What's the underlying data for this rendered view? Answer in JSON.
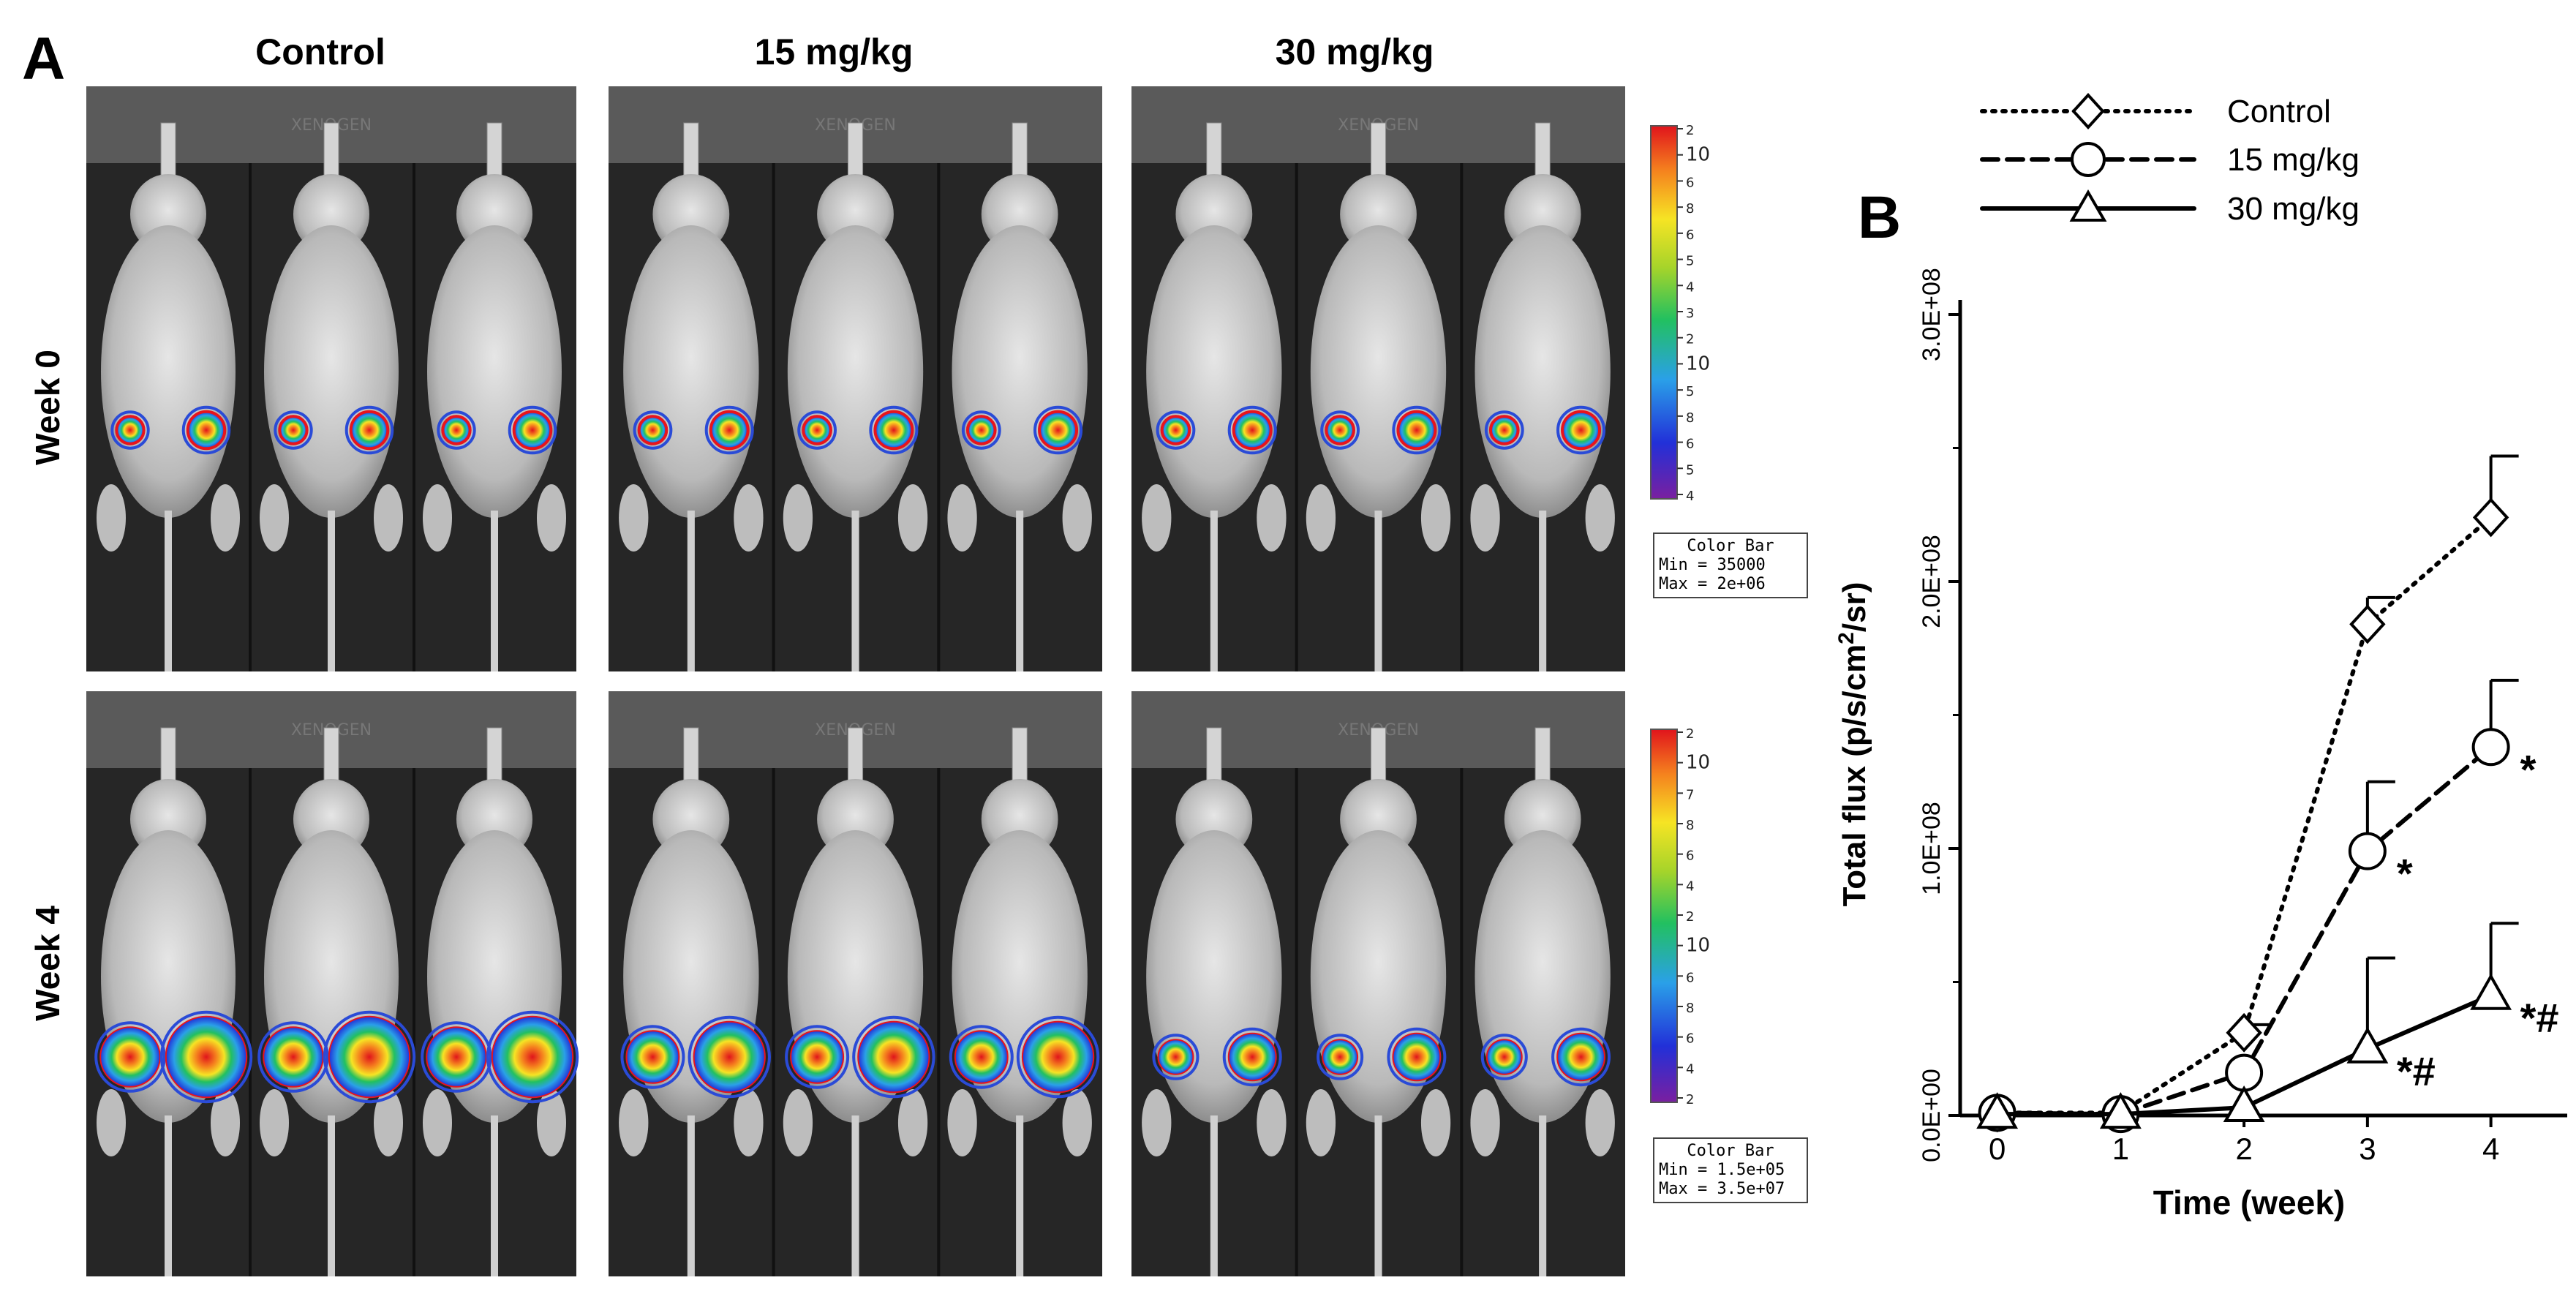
{
  "panel_a": {
    "letter": "A",
    "columns": [
      "Control",
      "15 mg/kg",
      "30 mg/kg"
    ],
    "rows": [
      "Week 0",
      "Week 4"
    ],
    "colorbars": [
      {
        "title": "Color Bar",
        "min": "Min = 35000",
        "max": "Max = 2e+06",
        "tick_labels": [
          "2",
          "10",
          "6",
          "8",
          "6",
          "5",
          "4",
          "3",
          "2",
          "10",
          "5",
          "8",
          "6",
          "5",
          "4"
        ]
      },
      {
        "title": "Color Bar",
        "min": "Min = 1.5e+05",
        "max": "Max = 3.5e+07",
        "tick_labels": [
          "2",
          "10",
          "7",
          "8",
          "6",
          "4",
          "2",
          "10",
          "6",
          "8",
          "6",
          "4",
          "2"
        ]
      }
    ],
    "photo_watermark": "XENOGEN",
    "colors": {
      "photo_bg": "#242424",
      "signal_red": "#e8141c",
      "signal_blue": "#2a4bd7"
    }
  },
  "chart_data": {
    "type": "line",
    "panel_letter": "B",
    "title": "",
    "xlabel": "Time (week)",
    "ylabel_parts": [
      "Total flux (p/s/cm",
      "2",
      "/sr)"
    ],
    "x": [
      0,
      1,
      2,
      3,
      4
    ],
    "x_tick_labels": [
      "0",
      "1",
      "2",
      "3",
      "4"
    ],
    "xlim": [
      -0.3,
      4.5
    ],
    "ylim": [
      0,
      300000000
    ],
    "y_ticks": [
      0,
      100000000,
      200000000,
      300000000
    ],
    "y_tick_labels": [
      "0.0E+00",
      "1.0E+08",
      "2.0E+08",
      "3.0E+08"
    ],
    "grid": false,
    "legend_position": "top-left",
    "series": [
      {
        "name": "Control",
        "marker": "diamond",
        "line_style": "dotted",
        "values": [
          1000000,
          1000000,
          31000000,
          184000000,
          224000000
        ],
        "error_upper": [
          0,
          0,
          3000000,
          10000000,
          23000000
        ]
      },
      {
        "name": "15 mg/kg",
        "marker": "circle",
        "line_style": "dashed",
        "values": [
          1000000,
          500000,
          16000000,
          99000000,
          138000000
        ],
        "error_upper": [
          0,
          0,
          0,
          26000000,
          25000000
        ]
      },
      {
        "name": "30 mg/kg",
        "marker": "triangle",
        "line_style": "solid",
        "values": [
          500000,
          500000,
          3000000,
          25000000,
          45000000
        ],
        "error_upper": [
          0,
          0,
          0,
          34000000,
          27000000
        ]
      }
    ],
    "annotations": [
      {
        "x": 4,
        "series": "15 mg/kg",
        "text": "*"
      },
      {
        "x": 3,
        "series": "15 mg/kg",
        "text": "*"
      },
      {
        "x": 3,
        "series": "30 mg/kg",
        "text": "*#"
      },
      {
        "x": 4,
        "series": "30 mg/kg",
        "text": "*#"
      }
    ]
  }
}
